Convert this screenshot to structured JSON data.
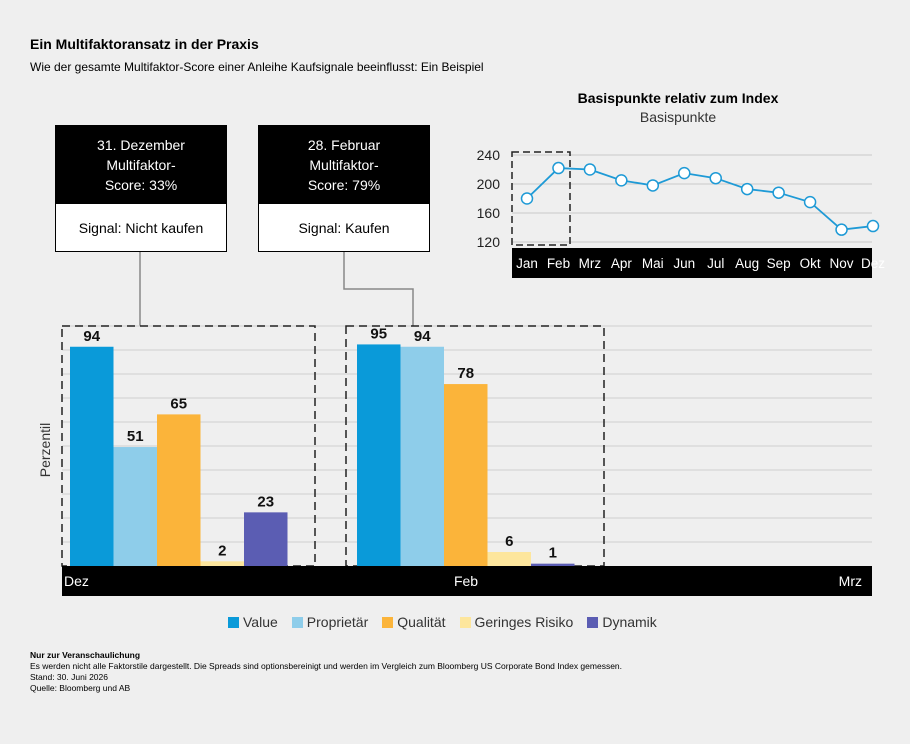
{
  "title": "Ein Multifaktoransatz in der Praxis",
  "subtitle": "Wie der gesamte Multifaktor-Score einer Anleihe Kaufsignale beeinflusst: Ein Beispiel",
  "callouts": [
    {
      "date": "31. Dezember",
      "line2": "Multifaktor-",
      "line3": "Score: 33%",
      "signal": "Signal: Nicht kaufen"
    },
    {
      "date": "28. Februar",
      "line2": "Multifaktor-",
      "line3": "Score: 79%",
      "signal": "Signal: Kaufen"
    }
  ],
  "colors": {
    "value": "#0a9ad9",
    "proprietaer": "#8ecdea",
    "qualitaet": "#fbb43a",
    "geringes_risiko": "#fde69d",
    "dynamik": "#5b5db3",
    "line": "#1e9ad6"
  },
  "chart_data": [
    {
      "type": "bar",
      "title": "",
      "ylabel": "Perzentil",
      "ylim": [
        0,
        100
      ],
      "categories": [
        "Dez",
        "Feb",
        "Mrz"
      ],
      "series": [
        {
          "name": "Value",
          "values": [
            94,
            95,
            null
          ]
        },
        {
          "name": "Proprietär",
          "values": [
            51,
            94,
            null
          ]
        },
        {
          "name": "Qualität",
          "values": [
            65,
            78,
            null
          ]
        },
        {
          "name": "Geringes Risiko",
          "values": [
            2,
            6,
            null
          ]
        },
        {
          "name": "Dynamik",
          "values": [
            23,
            1,
            null
          ]
        }
      ],
      "legend": "bottom",
      "grid": true
    },
    {
      "type": "line",
      "title": "Basispunkte relativ zum Index",
      "subtitle": "Basispunkte",
      "x": [
        "Jan",
        "Feb",
        "Mrz",
        "Apr",
        "Mai",
        "Jun",
        "Jul",
        "Aug",
        "Sep",
        "Okt",
        "Nov",
        "Dez"
      ],
      "y": [
        180,
        222,
        220,
        205,
        198,
        215,
        208,
        193,
        188,
        175,
        137,
        142
      ],
      "yticks": [
        120,
        160,
        200,
        240
      ],
      "ylim": [
        120,
        240
      ],
      "grid": true
    }
  ],
  "footnotes": {
    "heading": "Nur zur Veranschaulichung",
    "line1": "Es werden nicht alle Faktorstile dargestellt. Die Spreads sind optionsbereinigt und werden im Vergleich zum Bloomberg US Corporate Bond Index gemessen.",
    "line2": "Stand: 30. Juni 2026",
    "line3": "Quelle: Bloomberg und AB"
  }
}
